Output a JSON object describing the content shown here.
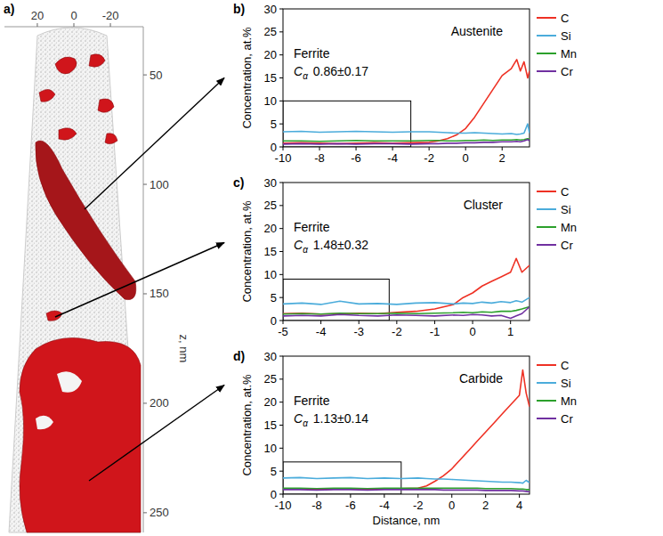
{
  "chart_data": [
    {
      "type": "reconstruction",
      "label": "a)",
      "xlim": [
        38,
        -38
      ],
      "xticks": [
        20,
        0,
        -20
      ],
      "ylim": [
        28,
        259
      ],
      "yticks": [
        50,
        100,
        150,
        200,
        250
      ],
      "y_label": "z, nm"
    },
    {
      "type": "line",
      "label": "b)",
      "y_label": "Concentration, at.%",
      "legend": "right",
      "xlim": [
        -10,
        3.5
      ],
      "xticks": [
        -10,
        -8,
        -6,
        -4,
        -2,
        0,
        2
      ],
      "ylim": [
        0,
        30
      ],
      "yticks": [
        0,
        5,
        10,
        15,
        20,
        25,
        30
      ],
      "x": [
        -10,
        -9,
        -8,
        -7,
        -6,
        -5,
        -4,
        -3,
        -2,
        -1.5,
        -1,
        -0.5,
        0,
        0.5,
        1,
        1.5,
        2,
        2.5,
        2.8,
        3,
        3.2,
        3.4,
        3.5
      ],
      "series": [
        {
          "name": "C",
          "color": "#ee3124",
          "values": [
            0.8,
            0.9,
            0.8,
            0.7,
            0.8,
            0.9,
            0.8,
            0.9,
            1.0,
            1.3,
            1.8,
            2.6,
            4.0,
            6.5,
            9.5,
            12.5,
            15.5,
            17,
            19,
            16.5,
            18.5,
            15,
            16.5
          ]
        },
        {
          "name": "Si",
          "color": "#4bacdb",
          "values": [
            3.3,
            3.4,
            3.2,
            3.3,
            3.4,
            3.3,
            3.2,
            3.3,
            3.3,
            3.2,
            3.1,
            3.0,
            3.0,
            3.1,
            3.0,
            2.9,
            2.8,
            2.9,
            2.7,
            2.8,
            3.0,
            5.0,
            3.0
          ]
        },
        {
          "name": "Mn",
          "color": "#2ca02c",
          "values": [
            1.3,
            1.3,
            1.2,
            1.3,
            1.4,
            1.3,
            1.3,
            1.3,
            1.4,
            1.4,
            1.3,
            1.3,
            1.4,
            1.4,
            1.5,
            1.4,
            1.5,
            1.5,
            1.6,
            1.5,
            1.6,
            1.8,
            1.6
          ]
        },
        {
          "name": "Cr",
          "color": "#7030a0",
          "values": [
            0.6,
            0.7,
            0.6,
            0.7,
            0.6,
            0.7,
            0.7,
            0.6,
            0.7,
            0.7,
            0.8,
            0.8,
            0.9,
            0.9,
            1.0,
            1.0,
            1.1,
            1.1,
            1.2,
            1.1,
            1.3,
            1.6,
            1.3
          ]
        }
      ],
      "ferrite_box": {
        "x": [
          -10,
          -3
        ],
        "y": [
          0,
          10
        ]
      },
      "annotations": {
        "phase": "Ferrite",
        "symbol": "C",
        "subscript": "α",
        "composition": "0.86±0.17",
        "region": "Austenite"
      }
    },
    {
      "type": "line",
      "label": "c)",
      "y_label": "Concentration, at.%",
      "legend": "right",
      "xlim": [
        -5,
        1.5
      ],
      "xticks": [
        -5,
        -4,
        -3,
        -2,
        -1,
        0,
        1
      ],
      "ylim": [
        0,
        30
      ],
      "yticks": [
        0,
        5,
        10,
        15,
        20,
        25,
        30
      ],
      "x": [
        -5,
        -4.5,
        -4,
        -3.5,
        -3,
        -2.5,
        -2,
        -1.5,
        -1,
        -0.5,
        -0.25,
        0,
        0.25,
        0.5,
        0.75,
        1,
        1.15,
        1.3,
        1.5
      ],
      "series": [
        {
          "name": "C",
          "color": "#ee3124",
          "values": [
            1.5,
            1.6,
            1.4,
            1.5,
            1.6,
            1.5,
            1.8,
            2.0,
            2.5,
            3.5,
            5.0,
            6.0,
            7.5,
            8.5,
            9.5,
            10.5,
            13.5,
            10.5,
            12
          ]
        },
        {
          "name": "Si",
          "color": "#4bacdb",
          "values": [
            3.6,
            3.8,
            3.5,
            4.2,
            3.6,
            3.7,
            3.5,
            3.8,
            3.9,
            3.6,
            3.8,
            3.7,
            4.0,
            3.8,
            4.1,
            3.9,
            4.3,
            4.0,
            5.0
          ]
        },
        {
          "name": "Mn",
          "color": "#2ca02c",
          "values": [
            1.4,
            1.5,
            1.4,
            1.6,
            1.5,
            1.5,
            1.6,
            1.5,
            1.6,
            1.7,
            1.8,
            1.7,
            1.9,
            1.8,
            2.0,
            2.0,
            2.2,
            2.5,
            3.0
          ]
        },
        {
          "name": "Cr",
          "color": "#7030a0",
          "values": [
            1.0,
            1.1,
            1.0,
            1.3,
            1.1,
            1.0,
            1.2,
            1.1,
            1.0,
            1.2,
            1.1,
            1.3,
            1.2,
            1.0,
            1.1,
            0.5,
            1.0,
            1.5,
            3.0
          ]
        }
      ],
      "ferrite_box": {
        "x": [
          -5,
          -2.2
        ],
        "y": [
          0,
          9
        ]
      },
      "annotations": {
        "phase": "Ferrite",
        "symbol": "C",
        "subscript": "α",
        "composition": "1.48±0.32",
        "region": "Cluster"
      }
    },
    {
      "type": "line",
      "label": "d)",
      "y_label": "Concentration, at.%",
      "x_label": "Distance, nm",
      "legend": "right",
      "xlim": [
        -10,
        4.6
      ],
      "xticks": [
        -10,
        -8,
        -6,
        -4,
        -2,
        0,
        2,
        4
      ],
      "ylim": [
        0,
        30
      ],
      "yticks": [
        0,
        5,
        10,
        15,
        20,
        25,
        30
      ],
      "x": [
        -10,
        -9,
        -8,
        -7,
        -6,
        -5,
        -4,
        -3,
        -2,
        -1.5,
        -1,
        -0.5,
        0,
        0.5,
        1,
        1.5,
        2,
        2.5,
        3,
        3.5,
        4,
        4.2,
        4.4,
        4.6
      ],
      "series": [
        {
          "name": "C",
          "color": "#ee3124",
          "values": [
            1.1,
            1.2,
            1.0,
            1.1,
            1.2,
            1.1,
            1.1,
            1.2,
            1.3,
            1.8,
            2.8,
            4.0,
            5.5,
            7.5,
            9.5,
            11.5,
            13.5,
            15.5,
            17.5,
            19.5,
            21.5,
            27,
            22,
            19
          ]
        },
        {
          "name": "Si",
          "color": "#4bacdb",
          "values": [
            3.5,
            3.6,
            3.4,
            3.5,
            3.6,
            3.4,
            3.5,
            3.4,
            3.5,
            3.4,
            3.3,
            3.3,
            3.2,
            3.1,
            3.0,
            2.9,
            2.8,
            2.7,
            2.6,
            2.6,
            2.5,
            2.4,
            3.0,
            2.5
          ]
        },
        {
          "name": "Mn",
          "color": "#2ca02c",
          "values": [
            1.3,
            1.3,
            1.2,
            1.3,
            1.3,
            1.2,
            1.3,
            1.3,
            1.3,
            1.3,
            1.3,
            1.3,
            1.3,
            1.3,
            1.3,
            1.3,
            1.2,
            1.2,
            1.2,
            1.2,
            1.1,
            1.1,
            1.0,
            1.0
          ]
        },
        {
          "name": "Cr",
          "color": "#7030a0",
          "values": [
            1.0,
            1.0,
            0.9,
            1.0,
            1.0,
            0.9,
            1.0,
            1.0,
            1.0,
            1.0,
            1.0,
            0.9,
            0.9,
            0.9,
            0.9,
            0.9,
            0.8,
            0.8,
            0.8,
            0.8,
            0.7,
            0.7,
            0.6,
            0.5
          ]
        }
      ],
      "ferrite_box": {
        "x": [
          -10,
          -3
        ],
        "y": [
          0,
          7
        ]
      },
      "annotations": {
        "phase": "Ferrite",
        "symbol": "C",
        "subscript": "α",
        "composition": "1.13±0.14",
        "region": "Carbide"
      }
    }
  ]
}
